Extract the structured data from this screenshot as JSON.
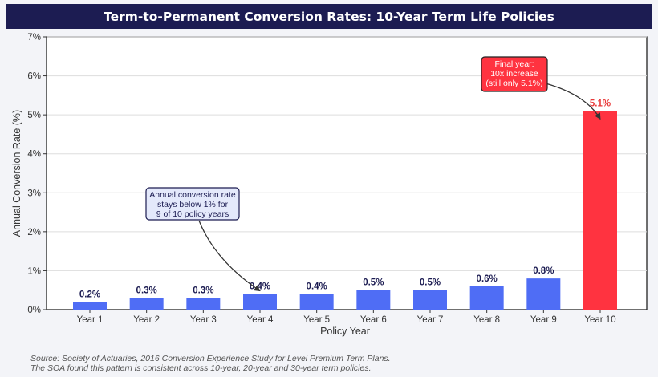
{
  "title": "Term-to-Permanent Conversion Rates: 10-Year Term Life Policies",
  "chart_data": {
    "type": "bar",
    "categories": [
      "Year 1",
      "Year 2",
      "Year 3",
      "Year 4",
      "Year 5",
      "Year 6",
      "Year 7",
      "Year 8",
      "Year 9",
      "Year 10"
    ],
    "values": [
      0.2,
      0.3,
      0.3,
      0.4,
      0.4,
      0.5,
      0.5,
      0.6,
      0.8,
      5.1
    ],
    "data_labels": [
      "0.2%",
      "0.3%",
      "0.3%",
      "0.4%",
      "0.4%",
      "0.5%",
      "0.5%",
      "0.6%",
      "0.8%",
      "5.1%"
    ],
    "xlabel": "Policy Year",
    "ylabel": "Annual Conversion Rate (%)",
    "ylim": [
      0,
      7
    ],
    "yticks": [
      0,
      1,
      2,
      3,
      4,
      5,
      6,
      7
    ],
    "ytick_labels": [
      "0%",
      "1%",
      "2%",
      "3%",
      "4%",
      "5%",
      "6%",
      "7%"
    ],
    "grid": "horizontal",
    "colors": {
      "normal": "#4f6df5",
      "highlight": "#ff3340",
      "normal_label": "#1c1c52",
      "highlight_label": "#e83a3a"
    },
    "highlight_index": 9,
    "annotations": [
      {
        "lines": [
          "Annual conversion rate",
          "stays below 1% for",
          "9 of 10 policy years"
        ],
        "target_category": "Year 4",
        "target_value": 0.4,
        "style": "blue"
      },
      {
        "lines": [
          "Final year:",
          "10x increase",
          "(still only 5.1%)"
        ],
        "target_category": "Year 10",
        "target_value": 5.1,
        "style": "red"
      }
    ]
  },
  "footnotes": [
    "Source: Society of Actuaries, 2016 Conversion Experience Study for Level Premium Term Plans.",
    "The SOA found this pattern is consistent across 10-year, 20-year and 30-year term policies."
  ]
}
